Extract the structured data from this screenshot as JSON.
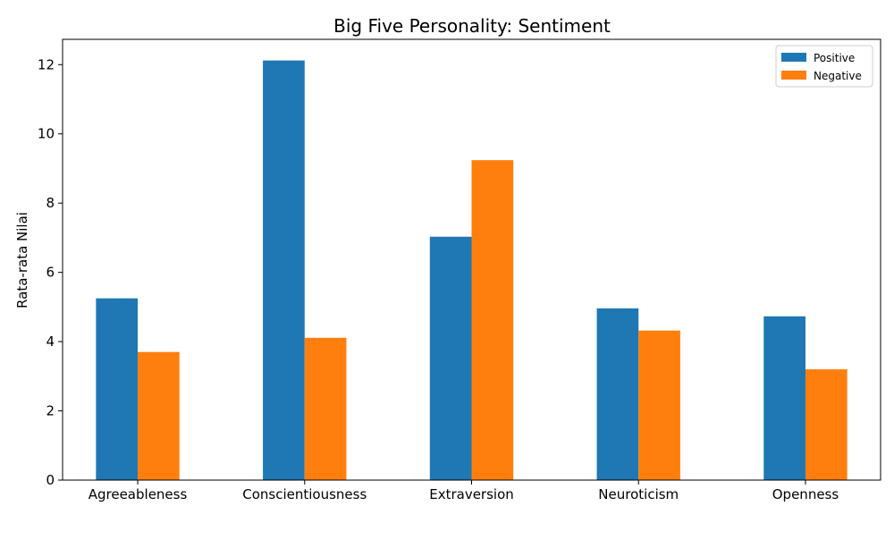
{
  "chart_data": {
    "type": "bar",
    "title": "Big Five Personality: Sentiment",
    "xlabel": "",
    "ylabel": "Rata-rata Nilai",
    "categories": [
      "Agreeableness",
      "Conscientiousness",
      "Extraversion",
      "Neuroticism",
      "Openness"
    ],
    "series": [
      {
        "name": "Positive",
        "color": "#1f77b4",
        "values": [
          5.25,
          12.12,
          7.03,
          4.96,
          4.73
        ]
      },
      {
        "name": "Negative",
        "color": "#ff7f0e",
        "values": [
          3.7,
          4.11,
          9.24,
          4.32,
          3.2
        ]
      }
    ],
    "ylim": [
      0,
      12.73
    ],
    "yticks": [
      0,
      2,
      4,
      6,
      8,
      10,
      12
    ],
    "grid": false,
    "legend_position": "top-right"
  }
}
